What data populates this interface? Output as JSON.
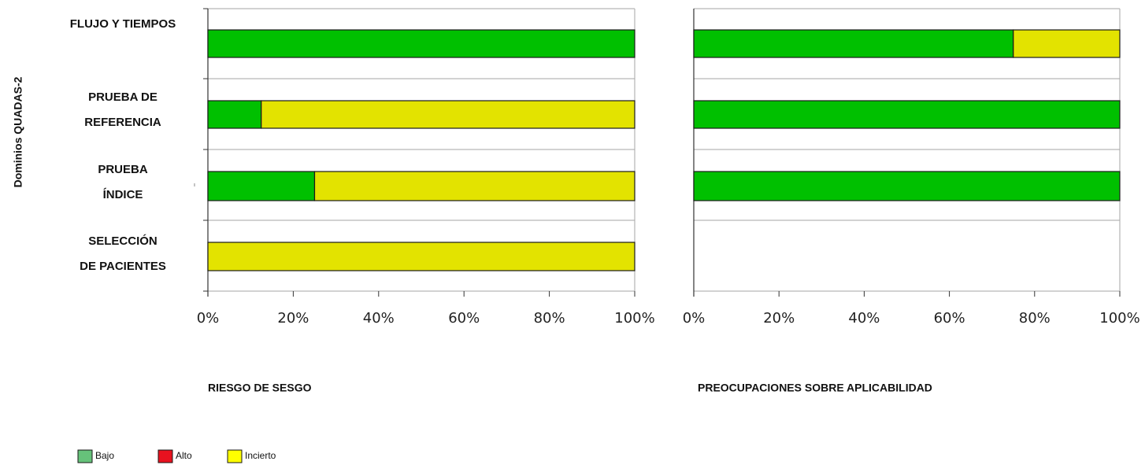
{
  "chart_data": [
    {
      "type": "bar",
      "orientation": "horizontal",
      "stacked": true,
      "title": "RIESGO DE SESGO",
      "ylabel": "Dominios QUADAS-2",
      "categories": [
        "FLUJO Y TIEMPOS",
        "PRUEBA DE REFERENCIA",
        "PRUEBA ÍNDICE",
        "SELECCIÓN DE PACIENTES"
      ],
      "category_lines": [
        [
          "FLUJO Y TIEMPOS"
        ],
        [
          "PRUEBA DE",
          "REFERENCIA"
        ],
        [
          "PRUEBA",
          "ÍNDICE"
        ],
        [
          "SELECCIÓN",
          "DE PACIENTES"
        ]
      ],
      "xlim": [
        0,
        100
      ],
      "xticks": [
        "0%",
        "20%",
        "40%",
        "60%",
        "80%",
        "100%"
      ],
      "series": [
        {
          "name": "Bajo",
          "values": [
            100,
            12.5,
            25,
            0
          ]
        },
        {
          "name": "Alto",
          "values": [
            0,
            0,
            0,
            0
          ]
        },
        {
          "name": "Incierto",
          "values": [
            0,
            87.5,
            75,
            100
          ]
        }
      ]
    },
    {
      "type": "bar",
      "orientation": "horizontal",
      "stacked": true,
      "title": "PREOCUPACIONES SOBRE APLICABILIDAD",
      "categories": [
        "FLUJO Y TIEMPOS",
        "PRUEBA DE REFERENCIA",
        "PRUEBA ÍNDICE",
        "SELECCIÓN DE PACIENTES"
      ],
      "xlim": [
        0,
        100
      ],
      "xticks": [
        "0%",
        "20%",
        "40%",
        "60%",
        "80%",
        "100%"
      ],
      "series": [
        {
          "name": "Bajo",
          "values": [
            75,
            100,
            100,
            0
          ]
        },
        {
          "name": "Alto",
          "values": [
            0,
            0,
            0,
            0
          ]
        },
        {
          "name": "Incierto",
          "values": [
            25,
            0,
            0,
            0
          ]
        }
      ]
    }
  ],
  "legend": {
    "position": "bottom-left",
    "items": [
      {
        "label": "Bajo",
        "color": "#66c27a"
      },
      {
        "label": "Alto",
        "color": "#e8121f"
      },
      {
        "label": "Incierto",
        "color": "#ffff00"
      }
    ]
  },
  "colors": {
    "bajo_bar": "#00c000",
    "alto_bar": "#e8121f",
    "incierto_bar": "#e3e300",
    "grid": "#a6a6a6"
  }
}
